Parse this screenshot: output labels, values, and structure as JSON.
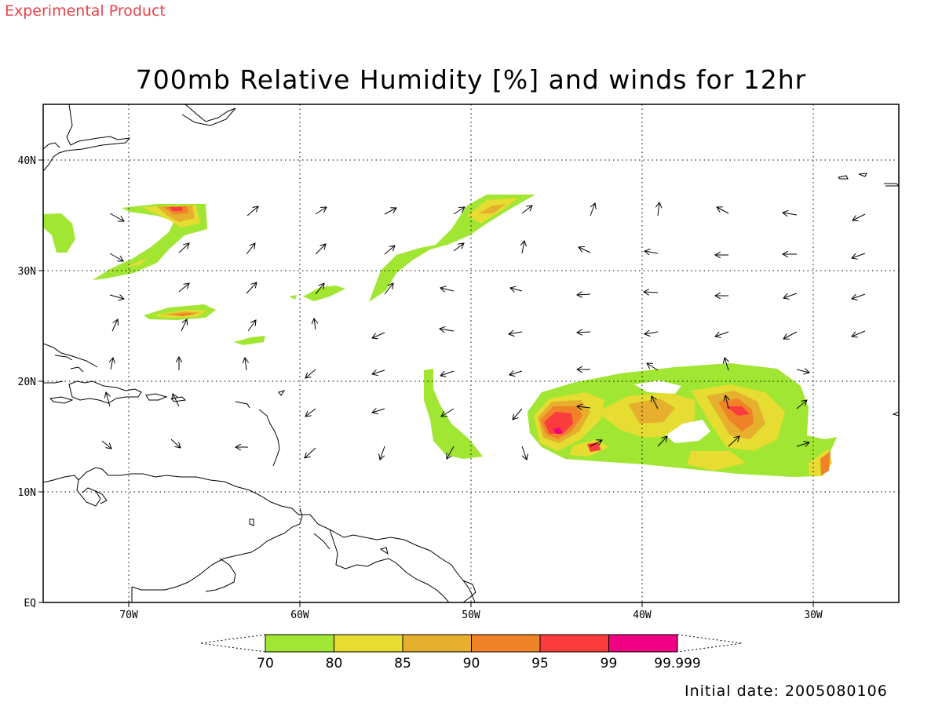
{
  "header": {
    "experimental_label": "Experimental Product",
    "title": "700mb Relative Humidity [%] and winds for 12hr"
  },
  "footer": {
    "initial_date": "Initial date: 2005080106"
  },
  "axes": {
    "lon_ticks": [
      {
        "lon": -70,
        "label": "70W"
      },
      {
        "lon": -60,
        "label": "60W"
      },
      {
        "lon": -50,
        "label": "50W"
      },
      {
        "lon": -40,
        "label": "40W"
      },
      {
        "lon": -30,
        "label": "30W"
      }
    ],
    "lat_ticks": [
      {
        "lat": 0,
        "label": "EQ"
      },
      {
        "lat": 10,
        "label": "10N"
      },
      {
        "lat": 20,
        "label": "20N"
      },
      {
        "lat": 30,
        "label": "30N"
      },
      {
        "lat": 40,
        "label": "40N"
      }
    ],
    "lon_range": [
      -75,
      -25
    ],
    "lat_range": [
      0,
      45
    ]
  },
  "legend": {
    "colors": [
      "#a0e632",
      "#e6dc32",
      "#e6af2d",
      "#f08228",
      "#fa3c3c",
      "#f00082"
    ],
    "labels": [
      "70",
      "80",
      "85",
      "90",
      "95",
      "99",
      "99.999"
    ]
  }
}
